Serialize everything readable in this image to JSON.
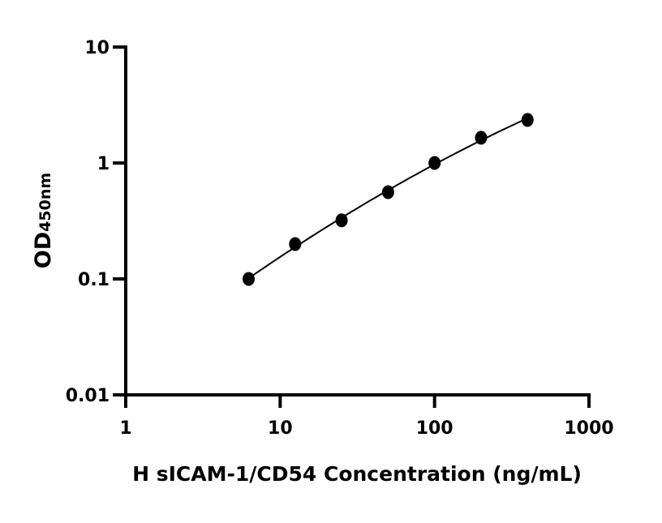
{
  "chart_data": {
    "type": "scatter",
    "title": "",
    "xlabel": "H sICAM-1/CD54 Concentration (ng/mL)",
    "ylabel_main": "OD",
    "ylabel_sub": "450nm",
    "x_scale": "log",
    "y_scale": "log",
    "xlim": [
      1,
      1000
    ],
    "ylim": [
      0.01,
      10
    ],
    "x_ticks": [
      "1",
      "10",
      "100",
      "1000"
    ],
    "y_ticks": [
      "0.01",
      "0.1",
      "1",
      "10"
    ],
    "grid": false,
    "fit_curve": true,
    "series": [
      {
        "x": [
          6.25,
          12.5,
          25,
          50,
          100,
          200,
          400
        ],
        "y": [
          0.1,
          0.2,
          0.32,
          0.56,
          1.0,
          1.65,
          2.35
        ]
      }
    ],
    "colors": {
      "marker": "#000000",
      "line": "#000000"
    }
  }
}
